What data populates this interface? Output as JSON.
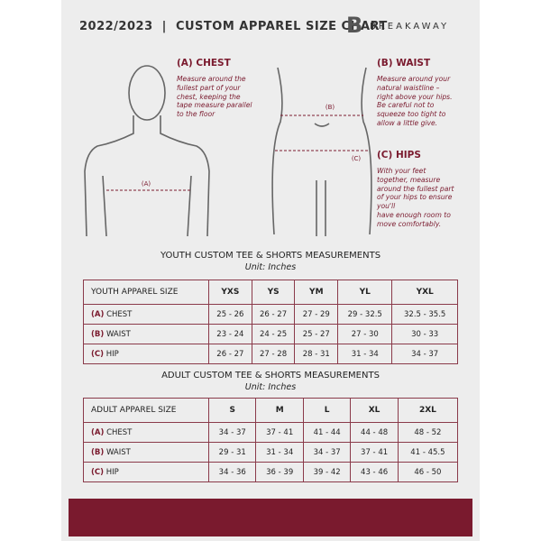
{
  "header": {
    "title": "2022/2023  |  CUSTOM APPAREL SIZE CHART",
    "logo_letter": "B",
    "logo_text": "BREAKAWAY"
  },
  "measurements": {
    "chest": {
      "title": "(A) CHEST",
      "marker": "(A)",
      "lines": [
        "Measure around the",
        "fullest part of your",
        "chest, keeping the",
        "tape measure parallel",
        "to the floor"
      ]
    },
    "waist": {
      "title": "(B) WAIST",
      "marker": "(B)",
      "lines": [
        "Measure around your",
        "natural waistline –",
        "right above your hips.",
        "Be careful not to",
        "squeeze too tight to",
        "allow a little give."
      ]
    },
    "hips": {
      "title": "(C) HIPS",
      "marker": "(C)",
      "lines": [
        "With your feet",
        "together, measure",
        "around the fullest part",
        "of your hips to ensure",
        "you'll",
        "have enough room to",
        "move comfortably."
      ]
    }
  },
  "youth_table": {
    "title": "YOUTH CUSTOM TEE & SHORTS MEASUREMENTS",
    "unit": "Unit: Inches",
    "header": [
      "YOUTH APPAREL SIZE",
      "YXS",
      "YS",
      "YM",
      "YL",
      "YXL"
    ],
    "rows": [
      {
        "code": "(A)",
        "name": "CHEST",
        "values": [
          "25 - 26",
          "26 - 27",
          "27 - 29",
          "29 - 32.5",
          "32.5 - 35.5"
        ]
      },
      {
        "code": "(B)",
        "name": "WAIST",
        "values": [
          "23 - 24",
          "24 - 25",
          "25 - 27",
          "27 - 30",
          "30 - 33"
        ]
      },
      {
        "code": "(C)",
        "name": "HIP",
        "values": [
          "26 - 27",
          "27 - 28",
          "28 - 31",
          "31 - 34",
          "34 - 37"
        ]
      }
    ]
  },
  "adult_table": {
    "title": "ADULT CUSTOM TEE & SHORTS MEASUREMENTS",
    "unit": "Unit: Inches",
    "header": [
      "ADULT APPAREL SIZE",
      "S",
      "M",
      "L",
      "XL",
      "2XL"
    ],
    "rows": [
      {
        "code": "(A)",
        "name": "CHEST",
        "values": [
          "34 - 37",
          "37 - 41",
          "41 - 44",
          "44 - 48",
          "48 - 52"
        ]
      },
      {
        "code": "(B)",
        "name": "WAIST",
        "values": [
          "29 - 31",
          "31 - 34",
          "34 - 37",
          "37 - 41",
          "41 - 45.5"
        ]
      },
      {
        "code": "(C)",
        "name": "HIP",
        "values": [
          "34 - 36",
          "36 - 39",
          "39 - 42",
          "43 - 46",
          "46 - 50"
        ]
      }
    ]
  }
}
